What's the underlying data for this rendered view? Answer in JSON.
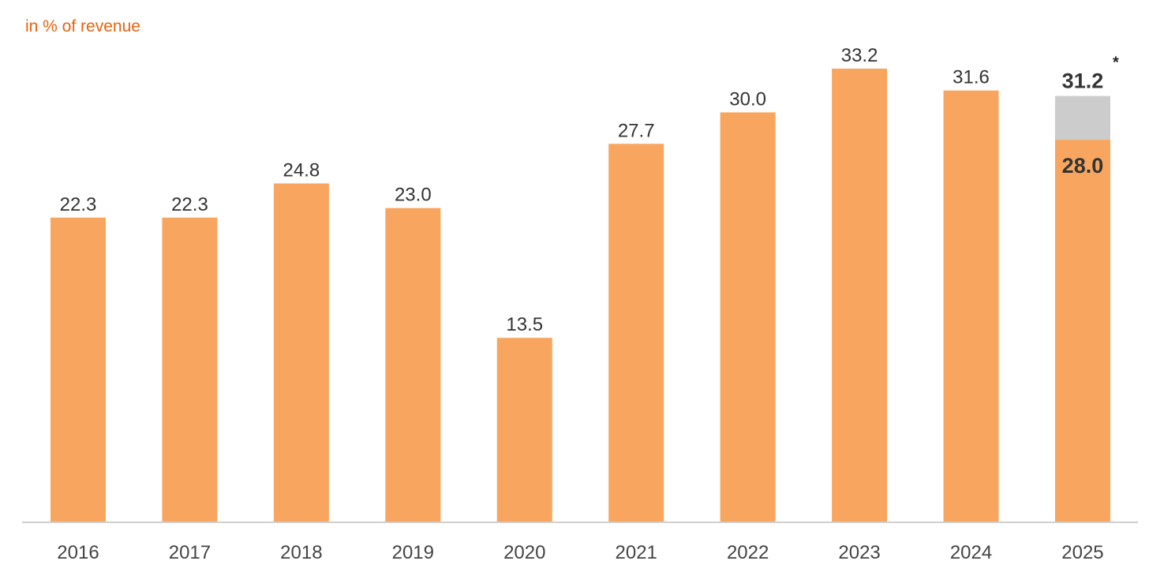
{
  "chart_data": {
    "type": "bar",
    "title": "",
    "ylabel": "in % of revenue",
    "xlabel": "",
    "categories": [
      "2016",
      "2017",
      "2018",
      "2019",
      "2020",
      "2021",
      "2022",
      "2023",
      "2024",
      "2025"
    ],
    "series": [
      {
        "values": [
          22.3,
          22.3,
          24.8,
          23.0,
          13.5,
          27.7,
          30.0,
          33.2,
          31.6,
          28.0
        ],
        "labels": [
          "22.3",
          "22.3",
          "24.8",
          "23.0",
          "13.5",
          "27.7",
          "30.0",
          "33.2",
          "31.6",
          "28.0"
        ]
      }
    ],
    "extension": {
      "category": "2025",
      "total": 31.2,
      "total_label": "31.2",
      "footnote_mark": "*"
    },
    "ylim": [
      0,
      34
    ],
    "grid": false,
    "colors": {
      "bar": "#f8a65f",
      "extension": "#cccccc",
      "unit_label": "#e8620f",
      "axis": "#cfcfcf",
      "label": "#333333"
    }
  }
}
